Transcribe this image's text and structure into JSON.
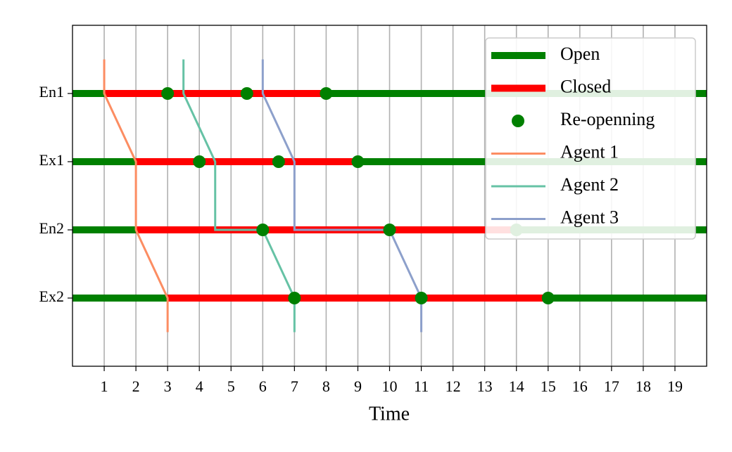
{
  "chart_data": {
    "type": "timeline",
    "xlabel": "Time",
    "xlim": [
      0,
      20
    ],
    "xticks": [
      1,
      2,
      3,
      4,
      5,
      6,
      7,
      8,
      9,
      10,
      11,
      12,
      13,
      14,
      15,
      16,
      17,
      18,
      19
    ],
    "ylim": [
      -1,
      4
    ],
    "yticks": [
      {
        "value": 3,
        "label": "En1"
      },
      {
        "value": 2,
        "label": "Ex1"
      },
      {
        "value": 1,
        "label": "En2"
      },
      {
        "value": 0,
        "label": "Ex2"
      }
    ],
    "grid": "x",
    "legend": "upper right",
    "series": [
      {
        "name": "Open",
        "color": "#008000",
        "x_start": [
          0,
          8,
          0,
          9,
          0,
          14,
          0,
          15
        ],
        "x_end": [
          1,
          20,
          2,
          20,
          2,
          20,
          3,
          20
        ],
        "y": [
          3,
          3,
          2,
          2,
          1,
          1,
          0,
          0
        ]
      },
      {
        "name": "Closed",
        "color": "#ff0000",
        "x_start": [
          1,
          2,
          2,
          3
        ],
        "x_end": [
          8,
          9,
          14,
          15
        ],
        "y": [
          3,
          2,
          1,
          0
        ]
      },
      {
        "name": "Re-openning",
        "color": "#008000",
        "marker": "o",
        "x": [
          3,
          5.5,
          8,
          4,
          6.5,
          9,
          6,
          10,
          14,
          7,
          11,
          15
        ],
        "y": [
          3,
          3,
          3,
          2,
          2,
          2,
          1,
          1,
          1,
          0,
          0,
          0
        ]
      },
      {
        "name": "Agent 1",
        "color": "#fc8d62",
        "x": [
          1,
          1,
          2,
          2,
          3,
          3
        ],
        "y": [
          3.5,
          3,
          2,
          1,
          0,
          -0.5
        ]
      },
      {
        "name": "Agent 2",
        "color": "#66c2a5",
        "x": [
          3.5,
          3.5,
          4.5,
          4.5,
          6,
          7,
          7
        ],
        "y": [
          3.5,
          3,
          2,
          1,
          1,
          0,
          -0.5
        ]
      },
      {
        "name": "Agent 3",
        "color": "#8da0cb",
        "x": [
          6,
          6,
          7,
          7,
          10,
          11,
          11
        ],
        "y": [
          3.5,
          3,
          2,
          1,
          1,
          0,
          -0.5
        ]
      }
    ]
  }
}
